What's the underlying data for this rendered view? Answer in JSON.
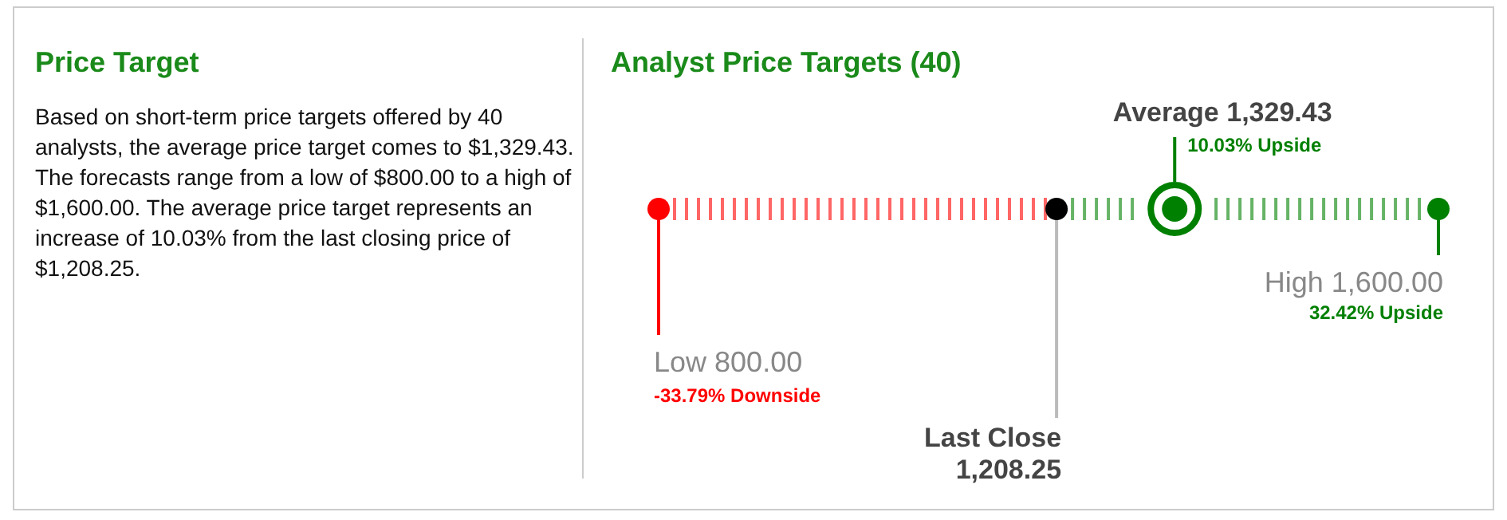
{
  "chart_data": [
    {
      "type": "other",
      "title": "Price Target",
      "annotations": [
        "Based on short-term price targets offered by 40 analysts, the average price target comes to $1,329.43. The forecasts range from a low of $800.00 to a high of $1,600.00. The average price target represents an increase of 10.03% from the last closing price of $1,208.25."
      ]
    },
    {
      "type": "other",
      "title": "Analyst Price Targets (40)",
      "values": [
        800,
        1208.25,
        1329.43,
        1600
      ],
      "categories": [
        "Low",
        "Last Close",
        "Average",
        "High"
      ],
      "value_labels": [
        "800.00",
        "1,208.25",
        "1,329.43",
        "1,600.00"
      ],
      "colors": [
        "#ff0000",
        "#000000",
        "#008000",
        "#008000"
      ],
      "annotations": [
        "-33.79% Downside",
        "10.03% Upside",
        "32.42% Upside"
      ]
    }
  ]
}
